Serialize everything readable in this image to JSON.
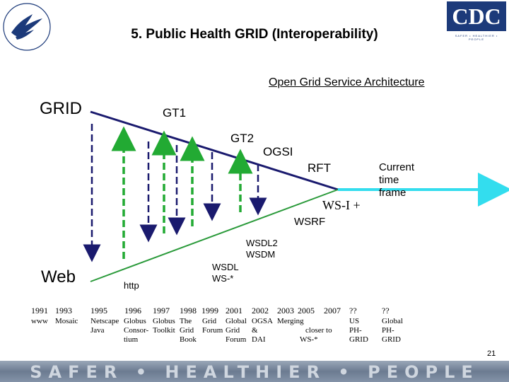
{
  "title": "5. Public Health GRID (Interoperability)",
  "ogsa_label": "Open Grid Service Architecture",
  "labels": {
    "grid": "GRID",
    "gt1": "GT1",
    "gt2": "GT2",
    "ogsi": "OGSI",
    "rft": "RFT",
    "wsi": "WS-I +",
    "wsrf": "WSRF",
    "current_line1": "Current",
    "current_line2": "time",
    "current_line3": "frame",
    "wsdl2_line1": "WSDL2",
    "wsdl2_line2": "WSDM",
    "wsdl_line1": "WSDL",
    "wsdl_line2": "WS-*",
    "web": "Web",
    "http": "http"
  },
  "timeline_row1": {
    "y1991": "1991",
    "y1993": "1993",
    "y1995": "1995",
    "y1996": "1996",
    "y1997": "1997",
    "y1998": "1998",
    "y1999": "1999",
    "y2001": "2001",
    "y2002": "2002",
    "y2003": "2003",
    "y2005": "2005",
    "y2007": "2007",
    "q1": "??",
    "q2": "??"
  },
  "timeline_detail": {
    "www": "www",
    "mosaic": "Mosaic",
    "netscape_java": [
      "Netscape",
      "Java"
    ],
    "globus_consortium": [
      "Globus",
      "Consor-",
      "tium"
    ],
    "globus_toolkit": [
      "Globus",
      "Toolkit"
    ],
    "the_grid_book": [
      "The",
      "Grid",
      "Book"
    ],
    "grid_forum": [
      "Grid",
      "Forum"
    ],
    "global_grid_forum": [
      "Global",
      "Grid",
      "Forum"
    ],
    "ogsa_dai": [
      "OGSA",
      "&",
      "DAI"
    ],
    "merging": [
      "Merging",
      "closer to",
      "WS-*"
    ],
    "us_phgrid": [
      "US",
      "PH-",
      "GRID"
    ],
    "global_phgrid": [
      "Global",
      "PH-",
      "GRID"
    ]
  },
  "slide_number": "21",
  "footer": "SAFER • HEALTHIER • PEOPLE",
  "cdc_logo_text": "CDC",
  "cdc_tagline": "SAFER • HEALTHIER • PEOPLE",
  "colors": {
    "line": "#1a1a6e",
    "green_line": "#2a9a3a",
    "arrow_green": "#22aa33",
    "cyan": "#33ddee",
    "cdc_blue": "#1c3a7a"
  },
  "icons": [
    "hhs-eagle-logo",
    "cdc-logo"
  ]
}
